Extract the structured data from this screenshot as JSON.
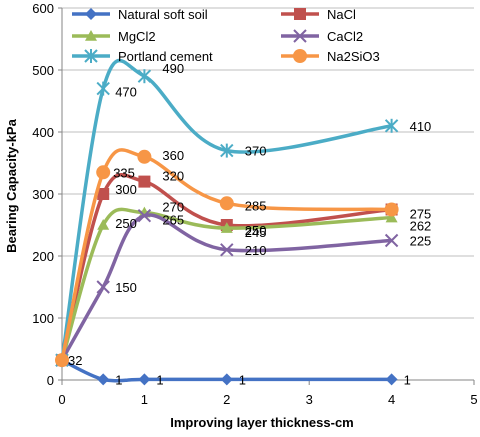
{
  "chart_data": {
    "type": "line",
    "xlabel": "Improving layer thickness-cm",
    "ylabel": "Bearing Capacity-kPa",
    "xlim": [
      0,
      5
    ],
    "ylim": [
      0,
      600
    ],
    "xticks": [
      "0",
      "1",
      "2",
      "3",
      "4",
      "5"
    ],
    "yticks": [
      "0",
      "100",
      "200",
      "300",
      "400",
      "500",
      "600"
    ],
    "grid": "horizontal",
    "legend": "top",
    "series": [
      {
        "name": "Natural soft soil",
        "color": "#4472C4",
        "marker": "diamond",
        "x": [
          0,
          0.5,
          1,
          2,
          4
        ],
        "values": [
          32,
          1,
          1,
          1,
          1
        ],
        "labels": [
          "32",
          "1",
          "1",
          "1",
          "1"
        ]
      },
      {
        "name": "NaCl",
        "color": "#C0504D",
        "marker": "square",
        "x": [
          0,
          0.5,
          1,
          2,
          4
        ],
        "values": [
          32,
          300,
          320,
          250,
          275
        ],
        "labels": [
          "",
          "300",
          "320",
          "250",
          "275"
        ]
      },
      {
        "name": "MgCl2",
        "color": "#9BBB59",
        "marker": "triangle",
        "x": [
          0,
          0.5,
          1,
          2,
          4
        ],
        "values": [
          32,
          250,
          270,
          245,
          262
        ],
        "labels": [
          "",
          "250",
          "270",
          "245",
          "262"
        ]
      },
      {
        "name": "CaCl2",
        "color": "#8064A2",
        "marker": "x",
        "x": [
          0,
          0.5,
          1,
          2,
          4
        ],
        "values": [
          32,
          150,
          265,
          210,
          225
        ],
        "labels": [
          "",
          "150",
          "265",
          "210",
          "225"
        ]
      },
      {
        "name": "Portland cement",
        "color": "#4BACC6",
        "marker": "star",
        "x": [
          0,
          0.5,
          1,
          2,
          4
        ],
        "values": [
          32,
          470,
          490,
          370,
          410
        ],
        "labels": [
          "",
          "470",
          "490",
          "370",
          "410"
        ]
      },
      {
        "name": "Na2SiO3",
        "color": "#F79646",
        "marker": "circle",
        "x": [
          0,
          0.5,
          1,
          2,
          4
        ],
        "values": [
          32,
          335,
          360,
          285,
          275
        ],
        "labels": [
          "",
          "335",
          "360",
          "285",
          ""
        ]
      }
    ]
  }
}
